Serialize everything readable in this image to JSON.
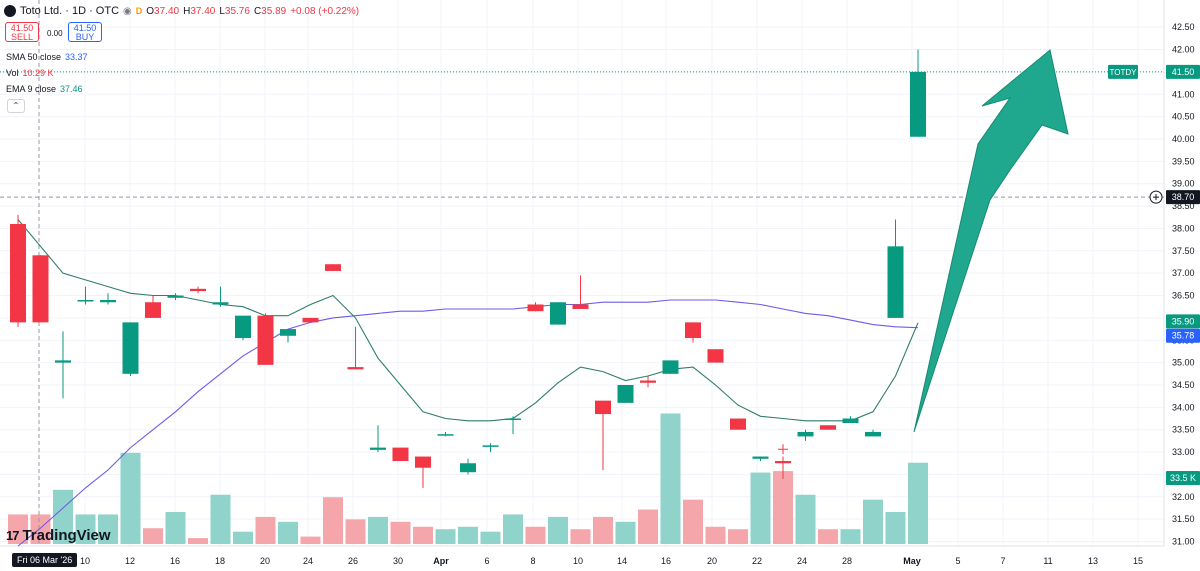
{
  "header": {
    "symbol_title": "Toto Ltd. · 1D · OTC",
    "ohlc": [
      {
        "key": "O",
        "value": "37.40"
      },
      {
        "key": "H",
        "value": "37.40"
      },
      {
        "key": "L",
        "value": "35.76"
      },
      {
        "key": "C",
        "value": "35.89"
      }
    ],
    "change": "+0.08 (+0.22%)",
    "sell_price": "41.50",
    "sell_label": "SELL",
    "spread": "0.00",
    "buy_price": "41.50",
    "buy_label": "BUY"
  },
  "indicators": [
    {
      "label": "SMA 50 close",
      "value": "33.37",
      "color": "#2962ff"
    },
    {
      "label": "Vol",
      "value": "10.29 K",
      "color": "#f23645"
    },
    {
      "label": "EMA 9 close",
      "value": "37.46",
      "color": "#089981"
    }
  ],
  "collapse_icon": "chevron-up-icon",
  "branding": "TradingView",
  "crosshair_date": "Fri 06 Mar '26",
  "price_badges": [
    {
      "label": "TOTDY",
      "value": "41.50",
      "color": "#089981",
      "price": 41.5
    },
    {
      "label": "",
      "value": "38.70",
      "color": "#131722",
      "price": 38.7
    },
    {
      "label": "",
      "value": "35.90",
      "color": "#089981",
      "price": 35.9
    },
    {
      "label": "",
      "value": "35.78",
      "color": "#2962ff",
      "price": 35.78
    },
    {
      "label": "",
      "value": "33.5 K",
      "color": "#089981",
      "price": null
    }
  ],
  "colors": {
    "up": "#089981",
    "down": "#f23645",
    "up_vol": "#8fd3cb",
    "down_vol": "#f5a6ab",
    "arrow": "#1fa88e"
  },
  "chart_data": {
    "type": "candlestick",
    "y_ticks": [
      "31.00",
      "31.50",
      "32.00",
      "32.50",
      "33.00",
      "33.50",
      "34.00",
      "34.50",
      "35.00",
      "35.50",
      "36.00",
      "36.50",
      "37.00",
      "37.50",
      "38.00",
      "38.50",
      "39.00",
      "39.50",
      "40.00",
      "40.50",
      "41.00",
      "41.50",
      "42.00",
      "42.50"
    ],
    "ylim": [
      30.9,
      42.75
    ],
    "x_ticks": [
      "10",
      "12",
      "16",
      "18",
      "20",
      "24",
      "26",
      "30",
      "Apr",
      "6",
      "8",
      "10",
      "14",
      "16",
      "20",
      "22",
      "24",
      "28",
      "May",
      "5",
      "7",
      "11",
      "13",
      "15"
    ],
    "candles": [
      {
        "o": 38.1,
        "h": 38.3,
        "l": 35.8,
        "c": 35.9
      },
      {
        "o": 37.4,
        "h": 37.4,
        "l": 35.9,
        "c": 35.9
      },
      {
        "o": 35.0,
        "h": 35.7,
        "l": 34.2,
        "c": 35.05
      },
      {
        "o": 36.4,
        "h": 36.7,
        "l": 36.3,
        "c": 36.4
      },
      {
        "o": 36.35,
        "h": 36.55,
        "l": 36.3,
        "c": 36.4
      },
      {
        "o": 34.75,
        "h": 35.9,
        "l": 34.7,
        "c": 35.9
      },
      {
        "o": 36.35,
        "h": 36.5,
        "l": 36.0,
        "c": 36.0
      },
      {
        "o": 36.45,
        "h": 36.55,
        "l": 36.4,
        "c": 36.5
      },
      {
        "o": 36.65,
        "h": 36.7,
        "l": 36.55,
        "c": 36.6
      },
      {
        "o": 36.3,
        "h": 36.7,
        "l": 36.25,
        "c": 36.35
      },
      {
        "o": 35.55,
        "h": 36.05,
        "l": 35.5,
        "c": 36.05
      },
      {
        "o": 36.05,
        "h": 36.1,
        "l": 34.95,
        "c": 34.95
      },
      {
        "o": 35.6,
        "h": 35.75,
        "l": 35.45,
        "c": 35.75
      },
      {
        "o": 36.0,
        "h": 36.0,
        "l": 35.9,
        "c": 35.9
      },
      {
        "o": 37.2,
        "h": 37.2,
        "l": 37.05,
        "c": 37.05
      },
      {
        "o": 34.9,
        "h": 35.8,
        "l": 34.85,
        "c": 34.85
      },
      {
        "o": 33.05,
        "h": 33.6,
        "l": 33.0,
        "c": 33.1
      },
      {
        "o": 33.1,
        "h": 33.1,
        "l": 32.8,
        "c": 32.8
      },
      {
        "o": 32.9,
        "h": 32.9,
        "l": 32.2,
        "c": 32.65
      },
      {
        "o": 33.4,
        "h": 33.45,
        "l": 33.35,
        "c": 33.4
      },
      {
        "o": 32.55,
        "h": 32.85,
        "l": 32.5,
        "c": 32.75
      },
      {
        "o": 33.15,
        "h": 33.2,
        "l": 33.0,
        "c": 33.15
      },
      {
        "o": 33.75,
        "h": 33.8,
        "l": 33.4,
        "c": 33.75
      },
      {
        "o": 36.3,
        "h": 36.35,
        "l": 36.15,
        "c": 36.15
      },
      {
        "o": 35.85,
        "h": 36.35,
        "l": 35.85,
        "c": 36.35
      },
      {
        "o": 36.3,
        "h": 36.95,
        "l": 36.2,
        "c": 36.2
      },
      {
        "o": 34.15,
        "h": 34.15,
        "l": 32.6,
        "c": 33.85
      },
      {
        "o": 34.1,
        "h": 34.5,
        "l": 34.1,
        "c": 34.5
      },
      {
        "o": 34.6,
        "h": 34.7,
        "l": 34.45,
        "c": 34.55
      },
      {
        "o": 34.75,
        "h": 35.05,
        "l": 34.75,
        "c": 35.05
      },
      {
        "o": 35.9,
        "h": 35.9,
        "l": 35.45,
        "c": 35.55
      },
      {
        "o": 35.3,
        "h": 35.3,
        "l": 35.0,
        "c": 35.0
      },
      {
        "o": 33.75,
        "h": 33.75,
        "l": 33.5,
        "c": 33.5
      },
      {
        "o": 32.85,
        "h": 32.9,
        "l": 32.8,
        "c": 32.9
      },
      {
        "o": 32.8,
        "h": 32.9,
        "l": 32.4,
        "c": 32.75
      },
      {
        "o": 33.35,
        "h": 33.5,
        "l": 33.25,
        "c": 33.45
      },
      {
        "o": 33.6,
        "h": 33.6,
        "l": 33.5,
        "c": 33.5
      },
      {
        "o": 33.65,
        "h": 33.8,
        "l": 33.65,
        "c": 33.75
      },
      {
        "o": 33.35,
        "h": 33.5,
        "l": 33.35,
        "c": 33.45
      },
      {
        "o": 36.0,
        "h": 38.2,
        "l": 36.0,
        "c": 37.6
      },
      {
        "o": 40.05,
        "h": 42.0,
        "l": 40.05,
        "c": 41.5
      }
    ],
    "volume_k": [
      6.0,
      6.0,
      11.0,
      6.0,
      6.0,
      18.5,
      3.2,
      6.5,
      1.2,
      10.0,
      2.5,
      5.5,
      4.5,
      1.5,
      9.5,
      5.0,
      5.5,
      4.5,
      3.5,
      3.0,
      3.5,
      2.5,
      6.0,
      3.5,
      5.5,
      3.0,
      5.5,
      4.5,
      7.0,
      26.5,
      9.0,
      3.5,
      3.0,
      14.5,
      14.8,
      10.0,
      3.0,
      3.0,
      9.0,
      6.5,
      16.5
    ],
    "sma50": [
      30.9,
      31.3,
      31.75,
      32.2,
      32.6,
      33.1,
      33.5,
      33.9,
      34.35,
      34.75,
      35.15,
      35.45,
      35.75,
      35.9,
      36.0,
      36.05,
      36.1,
      36.15,
      36.15,
      36.2,
      36.2,
      36.2,
      36.2,
      36.25,
      36.3,
      36.3,
      36.35,
      36.35,
      36.35,
      36.4,
      36.4,
      36.4,
      36.35,
      36.3,
      36.2,
      36.1,
      36.05,
      35.95,
      35.85,
      35.8,
      35.78
    ],
    "ema9": [
      38.2,
      37.6,
      37.0,
      36.85,
      36.7,
      36.55,
      36.5,
      36.5,
      36.4,
      36.3,
      36.25,
      36.05,
      36.05,
      36.3,
      36.5,
      36.0,
      35.1,
      34.5,
      33.9,
      33.75,
      33.7,
      33.7,
      33.75,
      34.1,
      34.55,
      34.9,
      34.8,
      34.6,
      34.7,
      34.85,
      34.9,
      34.5,
      34.05,
      33.8,
      33.75,
      33.7,
      33.7,
      33.7,
      33.9,
      34.7,
      35.89
    ],
    "annotation": "large up arrow from ~33.45 toward ~42"
  }
}
